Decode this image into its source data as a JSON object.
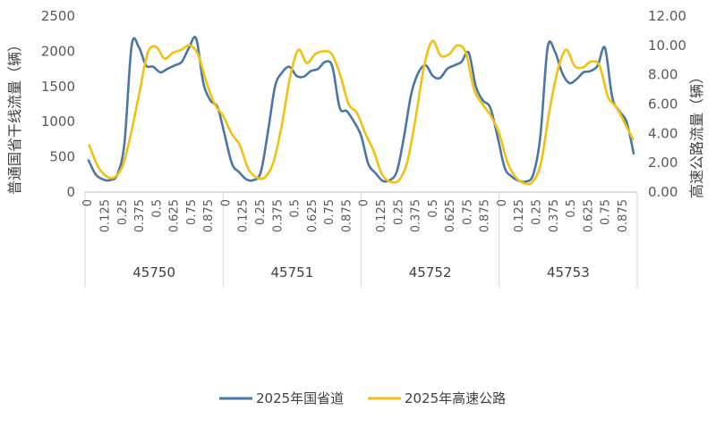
{
  "chart_data": {
    "type": "line",
    "y_left_label": "普通国省干线流量（辆）",
    "y_right_label": "高速公路流量（辆）",
    "y_left_ticks": [
      "0",
      "500",
      "1000",
      "1500",
      "2000",
      "2500"
    ],
    "y_right_ticks": [
      "0.00",
      "2.00",
      "4.00",
      "6.00",
      "8.00",
      "10.00",
      "12.00"
    ],
    "ylim_left": [
      0,
      2500
    ],
    "ylim_right": [
      0,
      12
    ],
    "x_hour_ticks": [
      "0",
      "0.125",
      "0.25",
      "0.375",
      "0.5",
      "0.625",
      "0.75",
      "0.875"
    ],
    "days": [
      "45750",
      "45751",
      "45752",
      "45753"
    ],
    "legend_position": "bottom",
    "series": [
      {
        "name": "2025年国省道",
        "axis": "left",
        "color": "#4A77A6",
        "values": [
          450,
          250,
          180,
          170,
          250,
          700,
          2080,
          2060,
          1800,
          1780,
          1700,
          1750,
          1800,
          1850,
          2050,
          2180,
          1550,
          1300,
          1200,
          800,
          400,
          280,
          180,
          170,
          280,
          850,
          1500,
          1700,
          1780,
          1650,
          1640,
          1720,
          1750,
          1850,
          1780,
          1200,
          1150,
          1000,
          800,
          400,
          270,
          160,
          170,
          300,
          800,
          1400,
          1700,
          1800,
          1650,
          1620,
          1750,
          1800,
          1850,
          1980,
          1500,
          1300,
          1200,
          800,
          350,
          220,
          160,
          150,
          250,
          800,
          2050,
          2000,
          1700,
          1550,
          1600,
          1700,
          1720,
          1800,
          2050,
          1350,
          1150,
          1000,
          550
        ]
      },
      {
        "name": "2025年高速公路",
        "axis": "right",
        "color": "#F2C10E",
        "values": [
          3.2,
          1.8,
          1.1,
          1.0,
          1.8,
          4.0,
          6.8,
          9.5,
          9.9,
          9.1,
          9.5,
          9.7,
          10.0,
          9.4,
          7.5,
          6.0,
          5.2,
          4.0,
          3.2,
          1.6,
          1.0,
          1.0,
          2.0,
          4.5,
          7.8,
          9.7,
          8.8,
          9.4,
          9.6,
          9.4,
          8.0,
          6.0,
          5.4,
          4.0,
          2.8,
          1.2,
          0.7,
          0.8,
          2.0,
          5.0,
          8.5,
          10.3,
          9.3,
          9.4,
          10.0,
          9.5,
          7.0,
          6.0,
          5.2,
          4.0,
          2.0,
          1.0,
          0.6,
          0.7,
          2.0,
          5.5,
          8.3,
          9.7,
          8.6,
          8.5,
          8.9,
          8.6,
          6.5,
          5.8,
          4.7,
          3.6
        ]
      }
    ]
  }
}
